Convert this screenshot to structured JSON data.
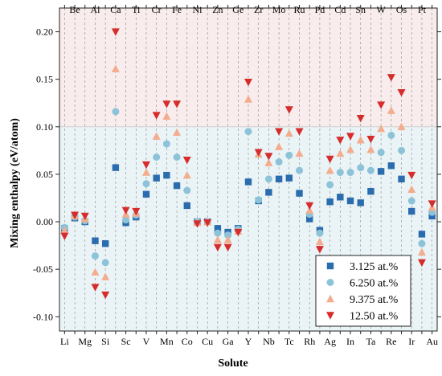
{
  "chart_data": {
    "type": "scatter",
    "xlabel": "Solute",
    "ylabel": "Mixing enthalpy (eV/atom)",
    "ylim": [
      -0.115,
      0.225
    ],
    "yticks": [
      -0.1,
      -0.05,
      0.0,
      0.05,
      0.1,
      0.15,
      0.2
    ],
    "ytick_labels": [
      "-0.10",
      "-0.05",
      "0.00",
      "0.05",
      "0.10",
      "0.15",
      "0.20"
    ],
    "elements": [
      "Li",
      "Be",
      "Mg",
      "Al",
      "Si",
      "Ca",
      "Sc",
      "Ti",
      "V",
      "Cr",
      "Mn",
      "Fe",
      "Co",
      "Ni",
      "Cu",
      "Zn",
      "Ga",
      "Ge",
      "Y",
      "Zr",
      "Nb",
      "Mo",
      "Tc",
      "Ru",
      "Rh",
      "Pd",
      "Ag",
      "Cd",
      "In",
      "Sn",
      "Ta",
      "W",
      "Re",
      "Os",
      "Ir",
      "Pt",
      "Au"
    ],
    "bottom_labels": [
      "Li",
      "Mg",
      "Si",
      "Sc",
      "V",
      "Mn",
      "Co",
      "Cu",
      "Ga",
      "Y",
      "Nb",
      "Tc",
      "Rh",
      "Ag",
      "In",
      "Ta",
      "Re",
      "Ir",
      "Au"
    ],
    "top_labels": [
      "Be",
      "Al",
      "Ca",
      "Ti",
      "Cr",
      "Fe",
      "Ni",
      "Zn",
      "Ge",
      "Zr",
      "Mo",
      "Ru",
      "Pd",
      "Cd",
      "Sn",
      "W",
      "Os",
      "Pt"
    ],
    "region_split": 0.1,
    "grid": "vertical dashed lines at each solute",
    "legend_position": "bottom-right",
    "series": [
      {
        "name": "3.125 at.%",
        "marker": "square",
        "color": "#2b6cae",
        "values": [
          -0.007,
          0.004,
          0.0,
          -0.02,
          -0.023,
          0.057,
          -0.001,
          0.005,
          0.029,
          0.046,
          0.049,
          0.038,
          0.017,
          0.0,
          0.0,
          -0.007,
          -0.011,
          -0.007,
          0.042,
          0.022,
          0.031,
          0.045,
          0.046,
          0.03,
          0.003,
          -0.009,
          0.021,
          0.026,
          0.022,
          0.02,
          0.032,
          0.053,
          0.059,
          0.045,
          0.011,
          -0.013,
          0.006
        ]
      },
      {
        "name": "6.250 at.%",
        "marker": "circle",
        "color": "#8dc3d8",
        "values": [
          -0.006,
          0.005,
          0.001,
          -0.036,
          -0.043,
          0.116,
          0.002,
          0.007,
          0.04,
          0.068,
          0.082,
          0.068,
          0.033,
          0.0,
          0.0,
          -0.012,
          -0.014,
          -0.008,
          0.095,
          0.023,
          0.045,
          0.063,
          0.07,
          0.054,
          0.008,
          -0.012,
          0.039,
          0.052,
          0.052,
          0.057,
          0.054,
          0.073,
          0.091,
          0.075,
          0.022,
          -0.023,
          0.01
        ]
      },
      {
        "name": "9.375 at.%",
        "marker": "triangle-up",
        "color": "#f4ac8e",
        "values": [
          -0.009,
          0.006,
          0.003,
          -0.053,
          -0.058,
          0.161,
          0.008,
          0.009,
          0.052,
          0.09,
          0.111,
          0.094,
          0.049,
          -0.001,
          0.0,
          -0.019,
          -0.019,
          -0.01,
          0.129,
          0.071,
          0.062,
          0.079,
          0.093,
          0.072,
          0.012,
          -0.021,
          0.054,
          0.072,
          0.076,
          0.086,
          0.076,
          0.098,
          0.117,
          0.1,
          0.034,
          -0.032,
          0.015
        ]
      },
      {
        "name": "12.50 at.%",
        "marker": "triangle-down",
        "color": "#d62c2c",
        "values": [
          -0.015,
          0.007,
          0.006,
          -0.069,
          -0.077,
          0.2,
          0.012,
          0.011,
          0.06,
          0.112,
          0.124,
          0.124,
          0.065,
          -0.002,
          -0.001,
          -0.027,
          -0.027,
          -0.011,
          0.147,
          0.073,
          0.069,
          0.095,
          0.118,
          0.095,
          0.017,
          -0.029,
          0.066,
          0.086,
          0.09,
          0.109,
          0.087,
          0.123,
          0.152,
          0.136,
          0.049,
          -0.043,
          0.019
        ]
      }
    ],
    "colors": {
      "upper_band": "#f8ecec",
      "lower_band": "#eaf4f6",
      "grid": "#8a8a8a",
      "axis": "#222222"
    }
  }
}
